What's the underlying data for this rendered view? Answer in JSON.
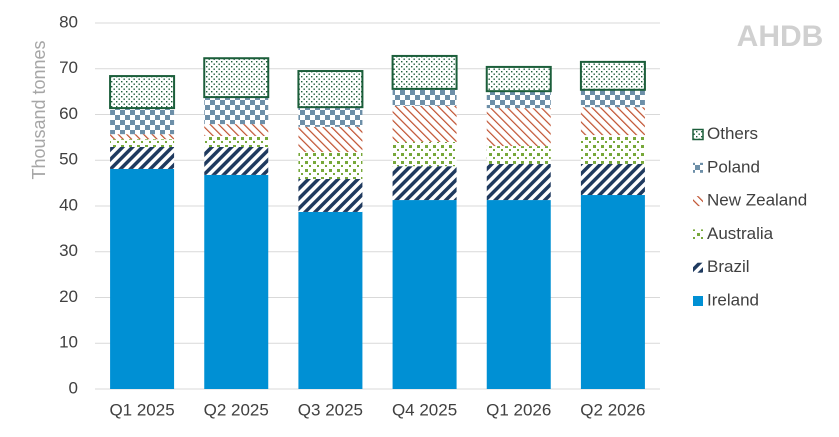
{
  "chart_data": {
    "type": "stacked-bar",
    "watermark": "AHDB",
    "y_label": "Thousand tonnes",
    "categories": [
      "Q1 2025",
      "Q2 2025",
      "Q3 2025",
      "Q4 2025",
      "Q1 2026",
      "Q2 2026"
    ],
    "series": [
      {
        "name": "Ireland",
        "color": "#0090d4",
        "values": [
          48.1,
          46.8,
          38.7,
          41.3,
          41.3,
          42.4
        ]
      },
      {
        "name": "Brazil",
        "color": "#1f3a5f",
        "values": [
          4.8,
          6.1,
          7.2,
          7.4,
          7.9,
          6.8
        ]
      },
      {
        "name": "Australia",
        "color": "#77a83a",
        "values": [
          1.7,
          2.4,
          5.9,
          5.3,
          3.9,
          6.3
        ]
      },
      {
        "name": "New Zealand",
        "color": "#c0502e",
        "values": [
          1.1,
          2.6,
          5.5,
          7.9,
          8.3,
          6.1
        ]
      },
      {
        "name": "Poland",
        "color": "#6d8fa8",
        "values": [
          5.7,
          5.9,
          4.3,
          3.7,
          3.7,
          3.8
        ]
      },
      {
        "name": "Others",
        "color": "#1b5e3a",
        "values": [
          7.0,
          8.5,
          7.9,
          7.2,
          5.3,
          6.1
        ]
      }
    ],
    "ylim": [
      0,
      80
    ],
    "yticks": [
      0,
      10,
      20,
      30,
      40,
      50,
      60,
      70,
      80
    ],
    "grid": true,
    "legend": "right"
  }
}
